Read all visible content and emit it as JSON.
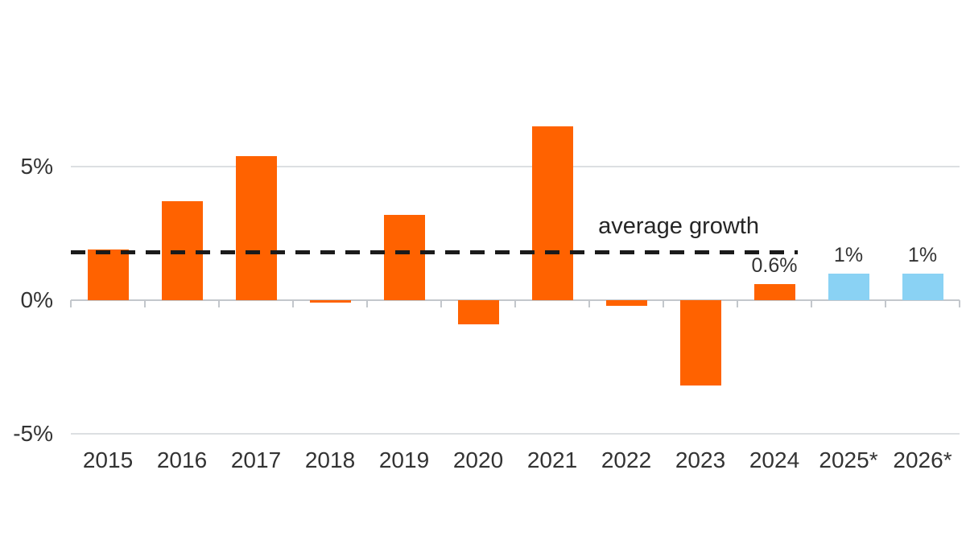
{
  "chart_data": {
    "type": "bar",
    "title": "",
    "xlabel": "",
    "ylabel": "",
    "categories": [
      "2015",
      "2016",
      "2017",
      "2018",
      "2019",
      "2020",
      "2021",
      "2022",
      "2023",
      "2024",
      "2025*",
      "2026*"
    ],
    "values": [
      1.9,
      3.7,
      5.4,
      -0.1,
      3.2,
      -0.9,
      6.5,
      -0.2,
      -3.2,
      0.6,
      1.0,
      1.0
    ],
    "forecast_from_index": 10,
    "data_labels": [
      null,
      null,
      null,
      null,
      null,
      null,
      null,
      null,
      null,
      "0.6%",
      "1%",
      "1%"
    ],
    "reference_line": {
      "value": 1.8,
      "label": "average growth",
      "spans_categories": [
        "2015",
        "2024"
      ]
    },
    "y_axis": {
      "ticks": [
        {
          "value": 5,
          "label": "5%"
        },
        {
          "value": 0,
          "label": "0%"
        },
        {
          "value": -5,
          "label": "-5%"
        }
      ],
      "range": [
        -5.5,
        7.3
      ],
      "grid": true
    },
    "legend_position": "none",
    "colors": {
      "actual_bar": "#FF6200",
      "forecast_bar": "#8AD2F4",
      "reference_line": "#1b1b1b",
      "text": "#333333",
      "gridline": "#dcdfe2",
      "axis": "#c3c7cc",
      "background": "#ffffff"
    }
  }
}
